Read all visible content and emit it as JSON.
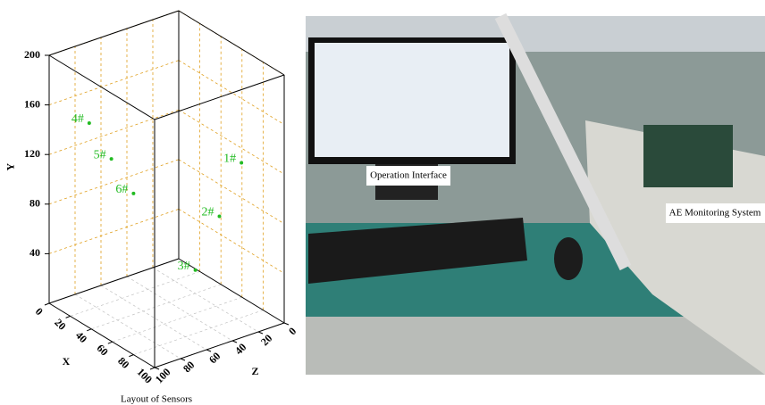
{
  "chart_data": {
    "type": "scatter3d",
    "title": "Layout of Sensors",
    "x_label": "X",
    "y_label": "Y",
    "z_label": "Z",
    "xlim": [
      0,
      100
    ],
    "ylim": [
      0,
      200
    ],
    "zlim": [
      0,
      100
    ],
    "xticks": [
      0,
      20,
      40,
      60,
      80,
      100
    ],
    "yticks": [
      40,
      80,
      120,
      160,
      200
    ],
    "zticks": [
      0,
      20,
      40,
      60,
      80,
      100
    ],
    "grid": true,
    "color": "#22bb22",
    "labels": [
      "1#",
      "2#",
      "3#",
      "4#",
      "5#",
      "6#"
    ],
    "x": [
      100,
      100,
      17,
      38,
      59,
      80
    ],
    "y": [
      141,
      104,
      0,
      165,
      147,
      130
    ],
    "z": [
      33,
      50,
      1,
      100,
      100,
      100
    ]
  },
  "photo": {
    "labels": [
      "Operation Interface",
      "AE Monitoring System"
    ]
  }
}
